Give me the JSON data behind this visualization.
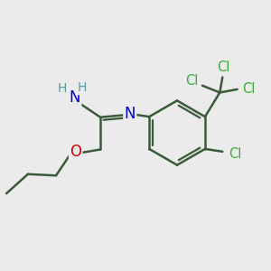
{
  "bg_color": "#ebebeb",
  "bond_color": "#3a5a3a",
  "bond_width": 1.8,
  "atom_colors": {
    "N": "#0000cc",
    "O": "#cc0000",
    "Cl": "#3aaa3a",
    "H": "#5a9a9a"
  },
  "font_size_atom": 12,
  "font_size_small": 10.5,
  "font_size_h": 10
}
